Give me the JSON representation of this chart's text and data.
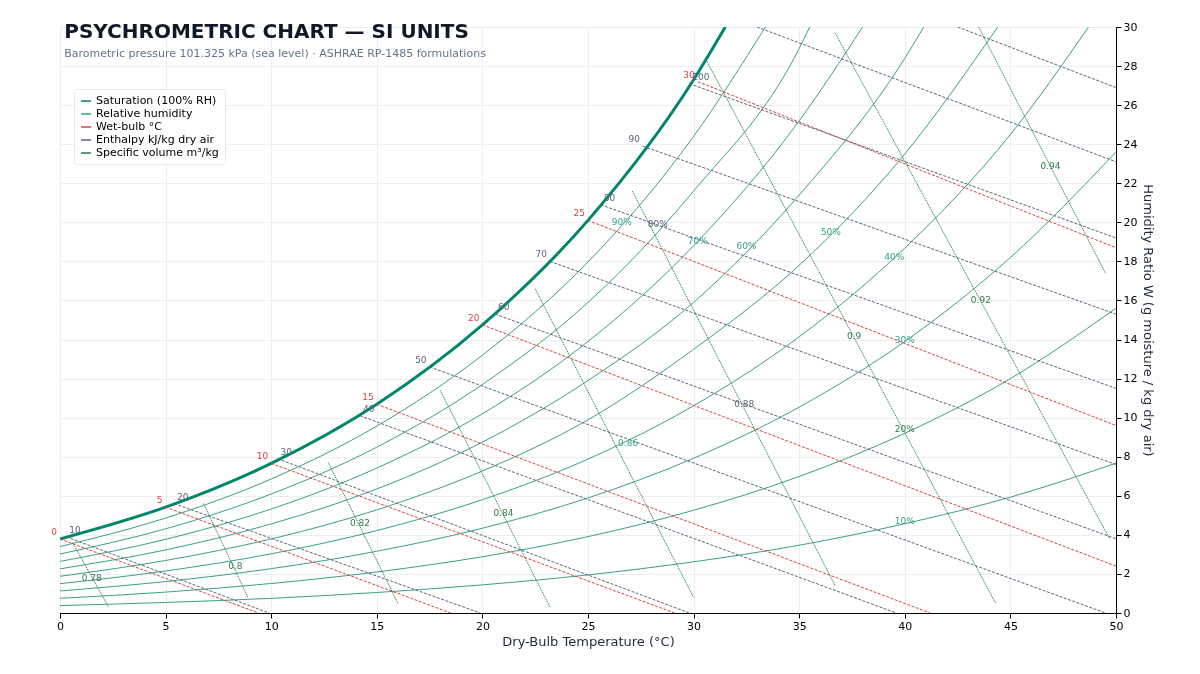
{
  "chart_data": {
    "type": "line",
    "title": "PSYCHROMETRIC CHART — SI UNITS",
    "subtitle": "Barometric pressure 101.325 kPa (sea level)  ·  ASHRAE RP-1485 formulations",
    "xlabel": "Dry-Bulb Temperature (°C)",
    "ylabel": "Humidity Ratio  W  (g moisture / kg dry air)",
    "xlim": [
      0,
      50
    ],
    "xticks": [
      0,
      5,
      10,
      15,
      20,
      25,
      30,
      35,
      40,
      45,
      50
    ],
    "ylim": [
      0,
      30
    ],
    "yticks": [
      0,
      2,
      4,
      6,
      8,
      10,
      12,
      14,
      16,
      18,
      20,
      22,
      24,
      26,
      28,
      30
    ],
    "grid": true,
    "legend": "top left",
    "series": [
      {
        "name": "Saturation (100% RH)",
        "color": "#00876a",
        "line_style": "solid",
        "x": [
          0,
          5,
          10,
          15,
          20,
          25,
          30,
          31.5
        ],
        "values": [
          3.79,
          5.42,
          7.66,
          10.69,
          14.75,
          20.1,
          27.3,
          30
        ]
      },
      {
        "name": "Relative humidity",
        "color": "#3aa08a",
        "line_style": "solid",
        "x": [
          0,
          5,
          10,
          15,
          20,
          25,
          30,
          35,
          40,
          45,
          50
        ],
        "values": [
          0.38,
          0.54,
          0.75,
          1.05,
          1.44,
          1.95,
          2.62,
          3.47,
          4.57,
          5.93,
          7.67
        ]
      },
      {
        "color": "#3aa08a",
        "line_style": "solid",
        "x": [
          0,
          5,
          10,
          15,
          20,
          25,
          30,
          35,
          40,
          45,
          50
        ],
        "values": [
          0.75,
          1.07,
          1.51,
          2.1,
          2.88,
          3.91,
          5.26,
          6.99,
          9.2,
          12,
          15.6
        ]
      },
      {
        "color": "#3aa08a",
        "line_style": "solid",
        "x": [
          0,
          5,
          10,
          15,
          20,
          25,
          30,
          35,
          40,
          45,
          50
        ],
        "values": [
          1.13,
          1.61,
          2.27,
          3.16,
          4.34,
          5.89,
          7.92,
          10.54,
          13.9,
          18.2,
          23.6
        ]
      },
      {
        "color": "#3aa08a",
        "line_style": "solid",
        "x": [
          0,
          5,
          10,
          15,
          20,
          25,
          30,
          35,
          40,
          45,
          48.7
        ],
        "values": [
          1.5,
          2.15,
          3.03,
          4.22,
          5.8,
          7.88,
          10.61,
          14.14,
          18.68,
          24.5,
          30
        ]
      },
      {
        "color": "#3aa08a",
        "line_style": "solid",
        "x": [
          0,
          5,
          10,
          15,
          20,
          25,
          30,
          35,
          40,
          44.4
        ],
        "values": [
          1.88,
          2.69,
          3.79,
          5.28,
          7.27,
          9.89,
          13.5,
          17.8,
          23.5,
          30
        ]
      },
      {
        "color": "#3aa08a",
        "line_style": "solid",
        "x": [
          0,
          5,
          10,
          15,
          20,
          25,
          30,
          35,
          40,
          40.9
        ],
        "values": [
          2.26,
          3.23,
          4.56,
          6.35,
          8.75,
          11.9,
          15.9,
          21.4,
          28.4,
          30
        ]
      },
      {
        "color": "#3aa08a",
        "line_style": "solid",
        "x": [
          0,
          5,
          10,
          15,
          20,
          25,
          30,
          35,
          38
        ],
        "values": [
          2.64,
          3.77,
          5.32,
          7.42,
          10.2,
          13.9,
          18.8,
          25.2,
          30
        ]
      },
      {
        "color": "#3aa08a",
        "line_style": "solid",
        "x": [
          0,
          5,
          10,
          15,
          20,
          25,
          30,
          35,
          35.5
        ],
        "values": [
          3.02,
          4.31,
          6.09,
          8.49,
          11.7,
          15.9,
          21.6,
          28.9,
          30
        ]
      },
      {
        "color": "#3aa08a",
        "line_style": "solid",
        "x": [
          0,
          5,
          10,
          15,
          20,
          25,
          30,
          33.4
        ],
        "values": [
          3.4,
          4.86,
          6.86,
          9.57,
          13.2,
          17.97,
          24.4,
          30
        ]
      },
      {
        "name": "Wet-bulb °C",
        "color": "#d94444",
        "line_style": "dashed",
        "x": [
          0,
          9.4
        ],
        "values": [
          3.79,
          0
        ]
      },
      {
        "color": "#d94444",
        "line_style": "dashed",
        "x": [
          5,
          18.5
        ],
        "values": [
          5.42,
          0
        ]
      },
      {
        "color": "#d94444",
        "line_style": "dashed",
        "x": [
          10,
          29.1
        ],
        "values": [
          7.66,
          0
        ]
      },
      {
        "color": "#d94444",
        "line_style": "dashed",
        "x": [
          15,
          41.2
        ],
        "values": [
          10.69,
          0
        ]
      },
      {
        "color": "#d94444",
        "line_style": "dashed",
        "x": [
          20,
          50
        ],
        "values": [
          14.75,
          2.4
        ]
      },
      {
        "color": "#d94444",
        "line_style": "dashed",
        "x": [
          25,
          50
        ],
        "values": [
          20.1,
          9.6
        ]
      },
      {
        "color": "#d94444",
        "line_style": "dashed",
        "x": [
          30.2,
          50
        ],
        "values": [
          27.2,
          18.7
        ]
      },
      {
        "name": "Enthalpy kJ/kg dry air",
        "color": "#5c6478",
        "line_style": "dashed",
        "x": [
          0.3,
          9.9
        ],
        "values": [
          3.9,
          0
        ]
      },
      {
        "color": "#5c6478",
        "line_style": "dashed",
        "x": [
          5.4,
          19.9
        ],
        "values": [
          5.6,
          0
        ]
      },
      {
        "color": "#5c6478",
        "line_style": "dashed",
        "x": [
          10.3,
          29.8
        ],
        "values": [
          7.9,
          0
        ]
      },
      {
        "color": "#5c6478",
        "line_style": "dashed",
        "x": [
          14.2,
          39.6
        ],
        "values": [
          10.1,
          0
        ]
      },
      {
        "color": "#5c6478",
        "line_style": "dashed",
        "x": [
          17.5,
          49.5
        ],
        "values": [
          12.6,
          0
        ]
      },
      {
        "color": "#5c6478",
        "line_style": "dashed",
        "x": [
          20.6,
          50
        ],
        "values": [
          15.3,
          3.8
        ]
      },
      {
        "color": "#5c6478",
        "line_style": "dashed",
        "x": [
          23.2,
          50
        ],
        "values": [
          18,
          7.6
        ]
      },
      {
        "color": "#5c6478",
        "line_style": "dashed",
        "x": [
          25.6,
          50
        ],
        "values": [
          20.9,
          11.5
        ]
      },
      {
        "color": "#5c6478",
        "line_style": "dashed",
        "x": [
          27.6,
          50
        ],
        "values": [
          23.9,
          15.3
        ]
      },
      {
        "color": "#5c6478",
        "line_style": "dashed",
        "x": [
          29.8,
          50
        ],
        "values": [
          27.1,
          19.2
        ]
      },
      {
        "color": "#5c6478",
        "line_style": "dashed",
        "x": [
          33,
          50
        ],
        "values": [
          30,
          23.1
        ]
      },
      {
        "color": "#5c6478",
        "line_style": "dashed",
        "x": [
          42.5,
          50
        ],
        "values": [
          30,
          26.9
        ]
      },
      {
        "name": "Specific volume m³/kg",
        "color": "#2e7d4f",
        "line_style": "dotted",
        "x": [
          0.6,
          2.3
        ],
        "values": [
          3.6,
          0.3
        ]
      },
      {
        "color": "#2e7d4f",
        "line_style": "dotted",
        "x": [
          6.8,
          8.9
        ],
        "values": [
          5.6,
          0.8
        ]
      },
      {
        "color": "#2e7d4f",
        "line_style": "dotted",
        "x": [
          12.7,
          16
        ],
        "values": [
          7.7,
          0.5
        ]
      },
      {
        "color": "#2e7d4f",
        "line_style": "dotted",
        "x": [
          18,
          23.2
        ],
        "values": [
          11.4,
          0.3
        ]
      },
      {
        "color": "#2e7d4f",
        "line_style": "dotted",
        "x": [
          22.5,
          30
        ],
        "values": [
          16.6,
          0.8
        ]
      },
      {
        "color": "#2e7d4f",
        "line_style": "dotted",
        "x": [
          27.1,
          36.7
        ],
        "values": [
          21.6,
          1.4
        ]
      },
      {
        "color": "#2e7d4f",
        "line_style": "dotted",
        "x": [
          30.6,
          44.3
        ],
        "values": [
          28.3,
          0.5
        ]
      },
      {
        "color": "#2e7d4f",
        "line_style": "dotted",
        "x": [
          36.7,
          49.7
        ],
        "values": [
          29.7,
          3.8
        ]
      },
      {
        "color": "#2e7d4f",
        "line_style": "dotted",
        "x": [
          43.5,
          49.5
        ],
        "values": [
          30,
          17.4
        ]
      }
    ],
    "annotations": [
      {
        "text": "10%",
        "x": 40,
        "y": 4.7
      },
      {
        "text": "20%",
        "x": 40,
        "y": 9.4
      },
      {
        "text": "30%",
        "x": 40,
        "y": 14
      },
      {
        "text": "40%",
        "x": 39.5,
        "y": 18.2
      },
      {
        "text": "50%",
        "x": 36.5,
        "y": 19.5
      },
      {
        "text": "60%",
        "x": 32.5,
        "y": 18.8
      },
      {
        "text": "70%",
        "x": 30.2,
        "y": 19.05
      },
      {
        "text": "80%",
        "x": 28.3,
        "y": 19.9
      },
      {
        "text": "90%",
        "x": 26.6,
        "y": 20
      },
      {
        "text": "0",
        "x": 0,
        "y": 3.79
      },
      {
        "text": "5",
        "x": 5,
        "y": 5.42
      },
      {
        "text": "10",
        "x": 10,
        "y": 7.66
      },
      {
        "text": "15",
        "x": 15,
        "y": 10.69
      },
      {
        "text": "20",
        "x": 20,
        "y": 14.75
      },
      {
        "text": "25",
        "x": 25,
        "y": 20.1
      },
      {
        "text": "30",
        "x": 30.2,
        "y": 27.2
      },
      {
        "text": "10",
        "x": 0.3,
        "y": 3.9
      },
      {
        "text": "20",
        "x": 5.4,
        "y": 5.6
      },
      {
        "text": "30",
        "x": 10.3,
        "y": 7.9
      },
      {
        "text": "40",
        "x": 14.2,
        "y": 10.1
      },
      {
        "text": "50",
        "x": 17.5,
        "y": 12.6
      },
      {
        "text": "60",
        "x": 20.6,
        "y": 15.3
      },
      {
        "text": "70",
        "x": 23.2,
        "y": 18
      },
      {
        "text": "80",
        "x": 25.6,
        "y": 20.9
      },
      {
        "text": "90",
        "x": 27.6,
        "y": 23.9
      },
      {
        "text": "100",
        "x": 29.8,
        "y": 27.1
      },
      {
        "text": "0.78",
        "x": 1.5,
        "y": 1.8
      },
      {
        "text": "0.8",
        "x": 8.3,
        "y": 2.4
      },
      {
        "text": "0.82",
        "x": 14.2,
        "y": 4.6
      },
      {
        "text": "0.84",
        "x": 21,
        "y": 5.1
      },
      {
        "text": "0.86",
        "x": 26.9,
        "y": 8.7
      },
      {
        "text": "0.88",
        "x": 32.4,
        "y": 10.7
      },
      {
        "text": "0.9",
        "x": 37.6,
        "y": 14.2
      },
      {
        "text": "0.92",
        "x": 43.6,
        "y": 16
      },
      {
        "text": "0.94",
        "x": 46.9,
        "y": 22.9
      }
    ]
  }
}
